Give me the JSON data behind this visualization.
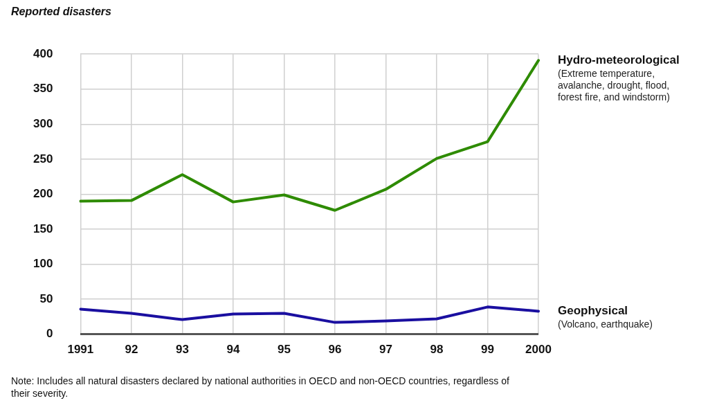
{
  "chart_data": {
    "type": "line",
    "ylabel": "Reported disasters",
    "categories": [
      "1991",
      "92",
      "93",
      "94",
      "95",
      "96",
      "97",
      "98",
      "99",
      "2000"
    ],
    "series": [
      {
        "name": "Hydro-meteorological",
        "color": "#2e8b00",
        "values": [
          190,
          191,
          228,
          189,
          199,
          177,
          207,
          251,
          275,
          391
        ]
      },
      {
        "name": "Geophysical",
        "color": "#1a0fa0",
        "values": [
          36,
          30,
          21,
          29,
          30,
          17,
          19,
          22,
          39,
          33
        ]
      }
    ],
    "ylim": [
      0,
      400
    ],
    "yticks": [
      0,
      50,
      100,
      150,
      200,
      250,
      300,
      350,
      400
    ],
    "grid": true,
    "legend": false,
    "marker": "none",
    "line_style": "solid",
    "annotations": [
      {
        "text": "(Extreme temperature, avalanche, drought, flood, forest fire, and windstorm)",
        "x": "2000",
        "y": 391
      },
      {
        "text": "(Volcano, earthquake)",
        "x": "2000",
        "y": 33
      },
      "Note: Includes all natural disasters declared by national authorities in OECD and non-OECD countries, regardless of their severity."
    ]
  }
}
